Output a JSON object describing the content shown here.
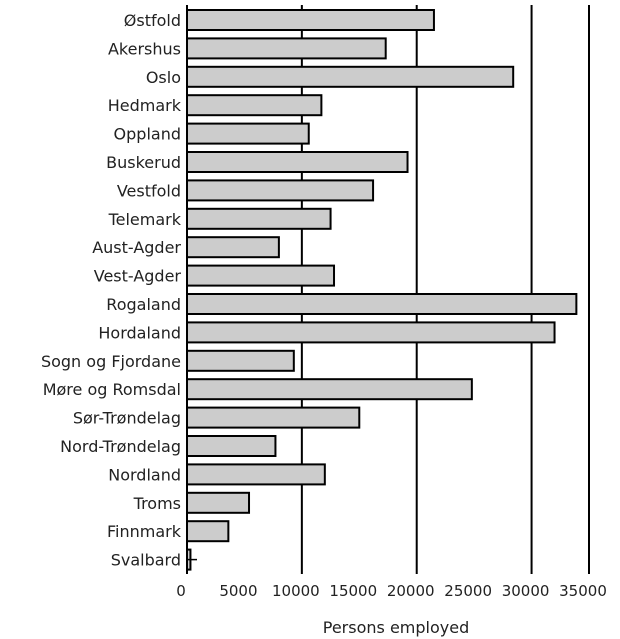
{
  "chart_data": {
    "type": "bar",
    "orientation": "horizontal",
    "categories": [
      "Østfold",
      "Akershus",
      "Oslo",
      "Hedmark",
      "Oppland",
      "Buskerud",
      "Vestfold",
      "Telemark",
      "Aust-Agder",
      "Vest-Agder",
      "Rogaland",
      "Hordaland",
      "Sogn og Fjordane",
      "Møre og Romsdal",
      "Sør-Trøndelag",
      "Nord-Trøndelag",
      "Nordland",
      "Troms",
      "Finnmark",
      "Svalbard"
    ],
    "values": [
      21500,
      17300,
      28400,
      11700,
      10600,
      19200,
      16200,
      12500,
      8000,
      12800,
      33900,
      32000,
      9300,
      24800,
      15000,
      7700,
      12000,
      5400,
      3600,
      300
    ],
    "xlabel": "Persons employed",
    "xlim": [
      0,
      35000
    ],
    "xticks": [
      0,
      5000,
      10000,
      15000,
      20000,
      25000,
      30000,
      35000
    ],
    "xtick_labels": [
      "0",
      "5000",
      "10000",
      "15000",
      "20000",
      "25000",
      "30000",
      "35000"
    ],
    "grid": "vertical lines at 10000, 20000, 30000 and 35000",
    "bar_color": "#cccccc",
    "bar_edge_color": "#000000"
  }
}
